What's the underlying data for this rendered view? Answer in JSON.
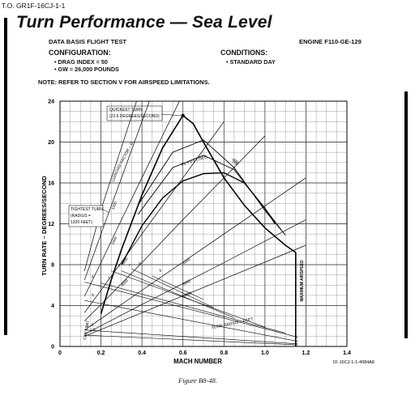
{
  "document_id": "T.O. GR1F-16CJ-1-1",
  "title": "Turn Performance — Sea Level",
  "data_basis": "DATA BASIS FLIGHT TEST",
  "engine": "ENGINE F110-GE-129",
  "configuration": {
    "heading": "CONFIGURATION:",
    "items": [
      "• DRAG INDEX = 50",
      "• GW = 26,000 POUNDS"
    ]
  },
  "conditions": {
    "heading": "CONDITIONS:",
    "items": [
      "• STANDARD DAY"
    ]
  },
  "note": "NOTE:  REFER TO SECTION V FOR AIRSPEED LIMITATIONS.",
  "figure_id": "1F-16CJ-1-1-4084A8",
  "caption": "Figure B8-48.",
  "chart_data": {
    "type": "line",
    "xlabel": "MACH NUMBER",
    "ylabel": "TURN RATE – DEGREES/SECOND",
    "xlim": [
      0,
      1.4
    ],
    "ylim": [
      0,
      24
    ],
    "x_ticks": [
      "0",
      "0.2",
      "0.4",
      "0.6",
      "0.8",
      "1.0",
      "1.2",
      "1.4"
    ],
    "y_ticks": [
      "0",
      "4",
      "8",
      "12",
      "16",
      "20",
      "24"
    ],
    "grid": true,
    "annotations": {
      "quickest_turn": [
        "QUICKEST TURN",
        "(22.6 DEGREES/SECOND)"
      ],
      "tightest_turn": [
        "TIGHTEST TURN",
        "(RADIUS =",
        "1320 FEET)"
      ],
      "max_airspeed": "MAXIMUM AIRSPEED",
      "load_factor": "LOAD FACTOR – G",
      "turn_radius": "TURN RADIUS – FEET",
      "ps_label": "Ps = 0 FT/SEC",
      "cas_limit": "CAS LIMIT"
    },
    "quickest_turn_point": {
      "mach": 0.6,
      "rate": 22.6
    },
    "sustained_ps0": {
      "name": "Ps = 0 FT/SEC",
      "x": [
        0.3,
        0.4,
        0.5,
        0.6,
        0.7,
        0.8,
        0.9,
        1.0,
        1.05
      ],
      "y": [
        8.0,
        11.8,
        14.5,
        16.2,
        16.9,
        17.0,
        16.0,
        13.5,
        12.0
      ]
    },
    "maneuver_envelope": {
      "x": [
        0.2,
        0.25,
        0.3,
        0.4,
        0.5,
        0.6,
        0.65,
        0.7,
        0.8,
        0.9,
        1.0,
        1.1,
        1.15,
        1.15
      ],
      "y": [
        3.2,
        6.5,
        9.5,
        14.8,
        19.4,
        22.6,
        21.8,
        20.0,
        16.5,
        13.8,
        11.6,
        9.9,
        9.2,
        0.0
      ]
    },
    "load_factor_lines": [
      {
        "g": "1.5",
        "x": [
          0.12,
          1.16
        ],
        "y": [
          1.1,
          0.15
        ]
      },
      {
        "g": "2",
        "x": [
          0.12,
          1.16
        ],
        "y": [
          1.6,
          0.25
        ]
      },
      {
        "g": "3",
        "x": [
          0.12,
          1.16
        ],
        "y": [
          4.5,
          0.5
        ]
      },
      {
        "g": "4",
        "x": [
          0.12,
          1.16
        ],
        "y": [
          6.3,
          0.9
        ]
      },
      {
        "g": "5",
        "x": [
          0.2,
          1.1
        ],
        "y": [
          6.2,
          1.3
        ]
      },
      {
        "g": "6",
        "x": [
          0.25,
          1.0
        ],
        "y": [
          7.4,
          1.9
        ]
      },
      {
        "g": "7",
        "x": [
          0.3,
          0.85
        ],
        "y": [
          7.4,
          2.8
        ]
      },
      {
        "g": "8",
        "x": [
          0.35,
          0.75
        ],
        "y": [
          7.6,
          3.8
        ]
      },
      {
        "g": "9",
        "x": [
          0.45,
          0.7
        ],
        "y": [
          6.9,
          4.6
        ]
      }
    ],
    "turn_radius_curves": [
      {
        "radius": "1320",
        "x": [
          0.12,
          0.2,
          0.3,
          0.4,
          0.5
        ],
        "y": [
          7.4,
          13.4,
          19.5,
          25.6,
          31.7
        ]
      },
      {
        "radius": "1500",
        "x": [
          0.12,
          0.2,
          0.3,
          0.4,
          0.5
        ],
        "y": [
          6.5,
          11.0,
          16.5,
          22.0,
          27.5
        ]
      },
      {
        "radius": "2000",
        "x": [
          0.12,
          0.2,
          0.3,
          0.4,
          0.5,
          0.6
        ],
        "y": [
          4.9,
          8.2,
          12.4,
          16.5,
          20.6,
          24.7
        ]
      },
      {
        "radius": "3000",
        "x": [
          0.12,
          0.2,
          0.4,
          0.6,
          0.8
        ],
        "y": [
          3.3,
          5.5,
          11.0,
          16.5,
          22.0
        ]
      },
      {
        "radius": "4000",
        "x": [
          0.12,
          0.2,
          0.4,
          0.6,
          0.8,
          1.0
        ],
        "y": [
          2.5,
          4.1,
          8.2,
          12.4,
          16.5,
          20.6
        ]
      },
      {
        "radius": "6000",
        "x": [
          0.12,
          0.4,
          0.8,
          1.2
        ],
        "y": [
          1.6,
          5.5,
          11.0,
          16.5
        ]
      },
      {
        "radius": "8000",
        "x": [
          0.12,
          0.4,
          0.8,
          1.2
        ],
        "y": [
          1.2,
          4.1,
          8.2,
          12.4
        ]
      },
      {
        "radius": "10000",
        "x": [
          0.12,
          0.4,
          0.8,
          1.2
        ],
        "y": [
          1.0,
          3.3,
          6.6,
          9.9
        ]
      }
    ],
    "ps_lines": [
      {
        "ps": "-400",
        "x": [
          0.38,
          0.55,
          0.7,
          0.85,
          1.0,
          1.1
        ],
        "y": [
          13.8,
          19.0,
          20.2,
          17.5,
          13.3,
          10.9
        ]
      },
      {
        "ps": "-200",
        "x": [
          0.38,
          0.55,
          0.7,
          0.85,
          1.0,
          1.08
        ],
        "y": [
          12.9,
          17.5,
          18.7,
          17.3,
          13.5,
          11.4
        ]
      }
    ]
  }
}
